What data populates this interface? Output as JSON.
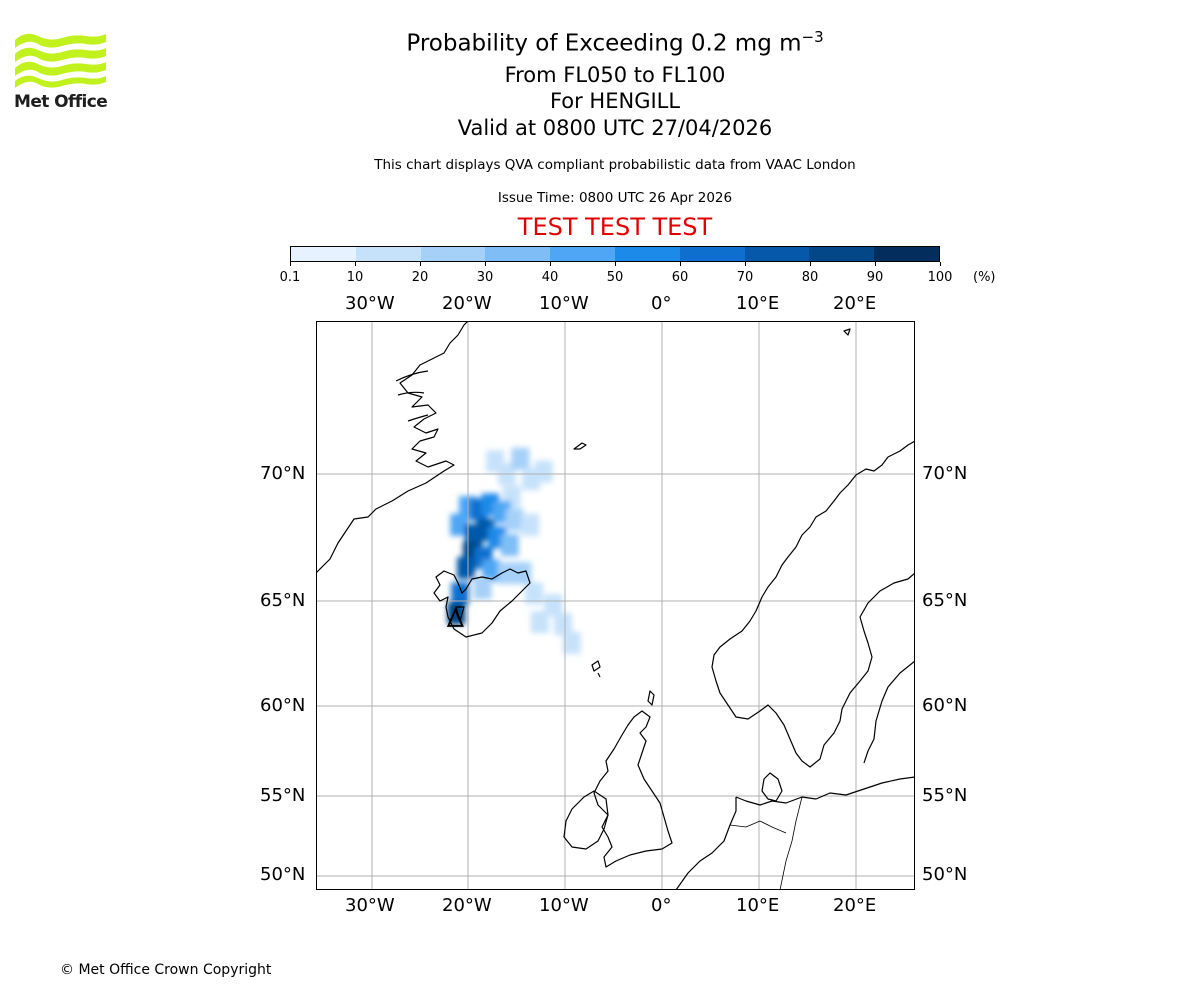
{
  "logo": {
    "text": "Met Office",
    "color": "#c2f21e"
  },
  "header": {
    "title": "Probability of Exceeding 0.2 mg m",
    "title_exponent": "−3",
    "subtitle1": "From FL050 to FL100",
    "subtitle2": "For HENGILL",
    "subtitle3": "Valid at 0800 UTC 27/04/2026",
    "subtitle4": "This chart displays QVA compliant probabilistic data from VAAC London",
    "subtitle5": "Issue Time: 0800 UTC 26 Apr 2026",
    "subtitle6": "TEST TEST TEST",
    "test_color": "#e00000"
  },
  "colorbar": {
    "ticks": [
      "0.1",
      "10",
      "20",
      "30",
      "40",
      "50",
      "60",
      "70",
      "80",
      "90",
      "100"
    ],
    "colors": [
      "#e6f2ff",
      "#c6e2fb",
      "#a5d0f8",
      "#7ebdf6",
      "#4ea6f4",
      "#1c8ae8",
      "#0e6fcf",
      "#0658ab",
      "#034788",
      "#022d5c"
    ],
    "unit": "(%)"
  },
  "map": {
    "lon_labels": [
      "30°W",
      "20°W",
      "10°W",
      "0°",
      "10°E",
      "20°E"
    ],
    "lat_labels": [
      "70°N",
      "65°N",
      "60°N",
      "55°N",
      "50°N"
    ],
    "plume": [
      {
        "lon": -17.2,
        "lat": 70.5,
        "p": 10
      },
      {
        "lon": -16.0,
        "lat": 70.0,
        "p": 10
      },
      {
        "lon": -14.6,
        "lat": 70.6,
        "p": 20
      },
      {
        "lon": -13.5,
        "lat": 69.8,
        "p": 10
      },
      {
        "lon": -12.2,
        "lat": 70.1,
        "p": 10
      },
      {
        "lon": -15.5,
        "lat": 69.1,
        "p": 10
      },
      {
        "lon": -20.0,
        "lat": 68.7,
        "p": 40
      },
      {
        "lon": -18.9,
        "lat": 68.6,
        "p": 60
      },
      {
        "lon": -17.7,
        "lat": 68.8,
        "p": 50
      },
      {
        "lon": -16.5,
        "lat": 68.5,
        "p": 40
      },
      {
        "lon": -15.2,
        "lat": 68.2,
        "p": 20
      },
      {
        "lon": -13.6,
        "lat": 68.0,
        "p": 10
      },
      {
        "lon": -20.9,
        "lat": 68.0,
        "p": 40
      },
      {
        "lon": -19.4,
        "lat": 67.6,
        "p": 70
      },
      {
        "lon": -18.2,
        "lat": 67.8,
        "p": 70
      },
      {
        "lon": -17.0,
        "lat": 67.5,
        "p": 50
      },
      {
        "lon": -15.7,
        "lat": 67.2,
        "p": 30
      },
      {
        "lon": -19.6,
        "lat": 66.9,
        "p": 80
      },
      {
        "lon": -18.4,
        "lat": 66.7,
        "p": 60
      },
      {
        "lon": -20.2,
        "lat": 66.3,
        "p": 70
      },
      {
        "lon": -17.6,
        "lat": 66.2,
        "p": 40
      },
      {
        "lon": -16.0,
        "lat": 66.1,
        "p": 20
      },
      {
        "lon": -14.4,
        "lat": 66.1,
        "p": 20
      },
      {
        "lon": -20.8,
        "lat": 65.3,
        "p": 60
      },
      {
        "lon": -18.5,
        "lat": 65.5,
        "p": 20
      },
      {
        "lon": -13.2,
        "lat": 65.3,
        "p": 10
      },
      {
        "lon": -11.2,
        "lat": 64.8,
        "p": 10
      },
      {
        "lon": -12.6,
        "lat": 64.0,
        "p": 10
      },
      {
        "lon": -10.2,
        "lat": 63.9,
        "p": 10
      },
      {
        "lon": -9.3,
        "lat": 63.0,
        "p": 10
      },
      {
        "lon": -21.2,
        "lat": 64.4,
        "p": 80
      }
    ],
    "volcano": {
      "lon": -21.3,
      "lat": 64.1
    }
  },
  "footer": {
    "copyright": "© Met Office Crown Copyright"
  }
}
